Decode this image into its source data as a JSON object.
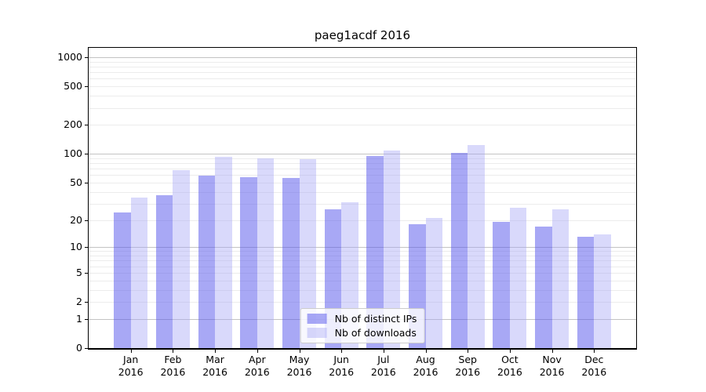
{
  "chart_data": {
    "type": "bar",
    "title": "paeg1acdf 2016",
    "categories": [
      "Jan",
      "Feb",
      "Mar",
      "Apr",
      "May",
      "Jun",
      "Jul",
      "Aug",
      "Sep",
      "Oct",
      "Nov",
      "Dec"
    ],
    "x_tick_second_line": "2016",
    "series": [
      {
        "name": "Nb of distinct IPs",
        "color": "#5858eb",
        "alpha": 0.52,
        "values": [
          24,
          37,
          59,
          57,
          56,
          26,
          95,
          18,
          102,
          19,
          17,
          13
        ]
      },
      {
        "name": "Nb of downloads",
        "color": "#a5a5f5",
        "alpha": 0.42,
        "values": [
          35,
          68,
          93,
          90,
          88,
          31,
          108,
          21,
          124,
          27,
          26,
          14
        ]
      }
    ],
    "yscale": "log1p",
    "yticks": [
      0,
      1,
      2,
      5,
      10,
      20,
      50,
      100,
      200,
      500,
      1000
    ],
    "ylim": [
      0,
      1250
    ],
    "grid": true,
    "legend_position": "lower center",
    "style": {
      "major_gridline_color": "#c3c3c3",
      "minor_gridline_color": "#ececec",
      "axis_color": "#000000",
      "legend_border_color": "#cccccc"
    }
  }
}
